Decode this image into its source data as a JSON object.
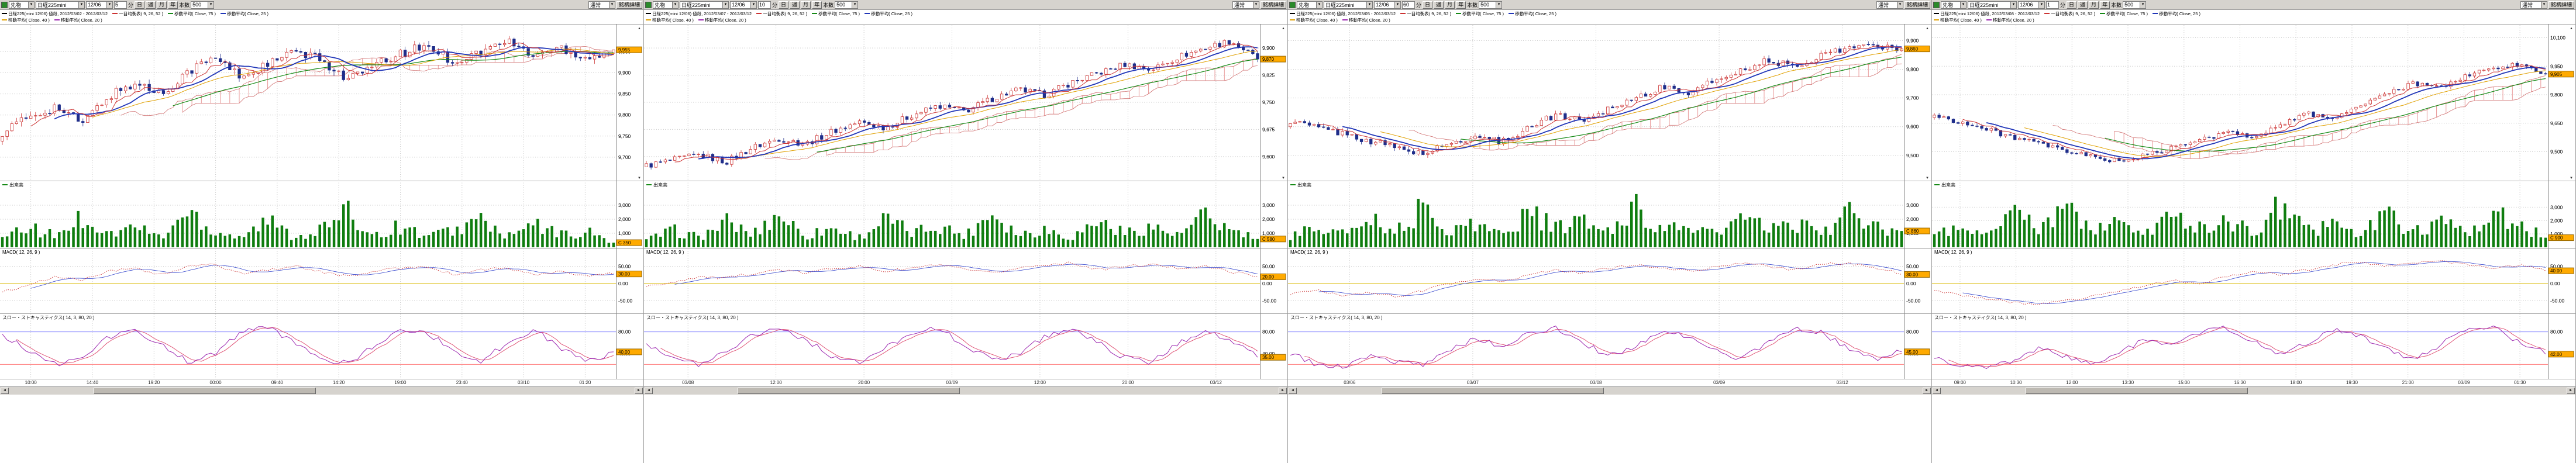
{
  "colors": {
    "up": "#cc3333",
    "down": "#1f2d8a",
    "cloud": "#e89898",
    "span": "#d07070",
    "ma75": "#168a16",
    "ma25": "#2136b8",
    "ma40": "#e0a000",
    "tenkan": "#cc3333",
    "volume": "#0f7d0f",
    "macd": "#cc3333",
    "signal": "#3344cc",
    "zero": "#d8b800",
    "stoch_k": "#9c27b0",
    "stoch_d": "#e05577",
    "ref_upper": "#7f7fff",
    "ref_lower": "#ff7f7f",
    "grid": "#c9c9c9",
    "axis": "#888888",
    "current_box": "#ffaa00",
    "toolbar_bg": "#d6d3ce",
    "swatch": "#2a8a2a"
  },
  "panels": [
    {
      "toolbar": {
        "market": "先物",
        "instrument": "日経225mini",
        "contract": "12/06",
        "interval_value": "5",
        "interval_unit": "分",
        "period_buttons": [
          "日",
          "週",
          "月",
          "年"
        ],
        "count_label": "本数",
        "count_value": "500",
        "mode": "通常",
        "detail": "銘柄詳細"
      },
      "legend": {
        "title": "日経225(mini 12/06) 値段, 2012/03/02 - 2012/03/12",
        "row1": [
          "一目均衡表( 9, 26, 52 )",
          "移動平均( Close, 75 )",
          "移動平均( Close, 25 )"
        ],
        "row2": [
          "移動平均( Close, 40 )",
          "移動平均( Close, 20 )"
        ]
      },
      "volume": {
        "label": "出来高"
      },
      "macd": {
        "label": "MACD( 12, 26, 9 )"
      },
      "stoch": {
        "label": "スロー・ストキャスティクス( 14, 3, 80, 20 )"
      }
    },
    {
      "toolbar": {
        "market": "先物",
        "instrument": "日経225mini",
        "contract": "12/06",
        "interval_value": "10",
        "interval_unit": "分",
        "period_buttons": [
          "日",
          "週",
          "月",
          "年"
        ],
        "count_label": "本数",
        "count_value": "500",
        "mode": "通常",
        "detail": "銘柄詳細"
      },
      "legend": {
        "title": "日経225(mini 12/06) 値段, 2012/03/07 - 2012/03/12",
        "row1": [
          "一目均衡表( 9, 26, 52 )",
          "移動平均( Close, 75 )",
          "移動平均( Close, 25 )"
        ],
        "row2": [
          "移動平均( Close, 40 )",
          "移動平均( Close, 20 )"
        ]
      },
      "volume": {
        "label": "出来高"
      },
      "macd": {
        "label": "MACD( 12, 26, 9 )"
      },
      "stoch": {
        "label": "スロー・ストキャスティクス( 14, 3, 80, 20 )"
      }
    },
    {
      "toolbar": {
        "market": "先物",
        "instrument": "日経225mini",
        "contract": "12/06",
        "interval_value": "60",
        "interval_unit": "分",
        "period_buttons": [
          "日",
          "週",
          "月",
          "年"
        ],
        "count_label": "本数",
        "count_value": "500",
        "mode": "通常",
        "detail": "銘柄詳細"
      },
      "legend": {
        "title": "日経225(mini 12/06) 値段, 2012/03/05 - 2012/03/12",
        "row1": [
          "一目均衡表( 9, 26, 52 )",
          "移動平均( Close, 75 )",
          "移動平均( Close, 25 )"
        ],
        "row2": [
          "移動平均( Close, 40 )",
          "移動平均( Close, 20 )"
        ]
      },
      "volume": {
        "label": "出来高"
      },
      "macd": {
        "label": "MACD( 12, 26, 9 )"
      },
      "stoch": {
        "label": "スロー・ストキャスティクス( 14, 3, 80, 20 )"
      }
    },
    {
      "toolbar": {
        "market": "先物",
        "instrument": "日経225mini",
        "contract": "12/06",
        "interval_value": "1",
        "interval_unit": "分",
        "period_buttons": [
          "日",
          "週",
          "月",
          "年"
        ],
        "count_label": "本数",
        "count_value": "500",
        "mode": "通常",
        "detail": "銘柄詳細"
      },
      "legend": {
        "title": "日経225(mini 12/06) 値段, 2012/03/08 - 2012/03/12",
        "row1": [
          "一目均衡表( 9, 26, 52 )",
          "移動平均( Close, 75 )",
          "移動平均( Close, 25 )"
        ],
        "row2": [
          "移動平均( Close, 40 )",
          "移動平均( Close, 20 )"
        ]
      },
      "volume": {
        "label": "出来高"
      },
      "macd": {
        "label": "MACD( 12, 26, 9 )"
      },
      "stoch": {
        "label": "スロー・ストキャスティクス( 14, 3, 80, 20 )"
      }
    }
  ],
  "chart_data": [
    {
      "type": "candlestick",
      "title": "日経225(mini 12/06)",
      "x_labels": [
        "10:00",
        "14:40",
        "19:20",
        "00:00",
        "09:40",
        "14:20",
        "19:00",
        "23:40",
        "03/10",
        "01:20"
      ],
      "price_anchors": [
        9760,
        9795,
        9820,
        9780,
        9845,
        9875,
        9850,
        9905,
        9935,
        9890,
        9920,
        9950,
        9930,
        9885,
        9915,
        9945,
        9965,
        9925,
        9950,
        9975,
        9940,
        9960,
        9935,
        9955
      ],
      "jitter": 11,
      "price_axis": {
        "min": 9650,
        "max": 10010,
        "tick_values": [
          9950,
          9900,
          9850,
          9800,
          9750,
          9700
        ],
        "tick_labels": [
          "9,950",
          "9,900",
          "9,850",
          "9,800",
          "9,750",
          "9,700"
        ],
        "current": "9,955"
      },
      "volume": {
        "anchors": [
          600,
          1400,
          800,
          2200,
          900,
          1500,
          700,
          2600,
          1100,
          800,
          1900,
          700,
          1300,
          2400,
          900,
          1500,
          800,
          1200,
          2000,
          700,
          1600,
          900,
          1100,
          350
        ],
        "max": 4000,
        "tick_values": [
          3000,
          2000,
          1000
        ],
        "tick_labels": [
          "3,000",
          "2,000",
          "1,000"
        ],
        "current": "C 350"
      },
      "macd": {
        "anchors": [
          -25,
          -5,
          20,
          10,
          35,
          45,
          25,
          50,
          55,
          30,
          40,
          50,
          35,
          20,
          35,
          45,
          50,
          25,
          40,
          45,
          25,
          35,
          20,
          30
        ],
        "range": [
          -80,
          80
        ],
        "tick_values": [
          50,
          0,
          -50
        ],
        "tick_labels": [
          "50.00",
          "0.00",
          "-50.00"
        ],
        "current": "30.00"
      },
      "stoch": {
        "anchors": [
          75,
          45,
          20,
          35,
          70,
          85,
          55,
          25,
          40,
          80,
          88,
          60,
          30,
          22,
          55,
          82,
          78,
          45,
          25,
          60,
          85,
          50,
          28,
          40
        ],
        "range": [
          0,
          100
        ],
        "tick_values": [
          80,
          40
        ],
        "tick_labels": [
          "80.00",
          "40.00"
        ],
        "upper": 80,
        "lower": 20,
        "current": "40.00"
      }
    },
    {
      "type": "candlestick",
      "title": "日経225(mini 12/06)",
      "x_labels": [
        "03/08",
        "12:00",
        "20:00",
        "03/09",
        "12:00",
        "20:00",
        "03/12"
      ],
      "price_anchors": [
        9575,
        9590,
        9605,
        9585,
        9625,
        9650,
        9635,
        9670,
        9695,
        9680,
        9715,
        9740,
        9725,
        9760,
        9785,
        9770,
        9805,
        9830,
        9855,
        9840,
        9875,
        9900,
        9920,
        9870
      ],
      "jitter": 9,
      "price_axis": {
        "min": 9540,
        "max": 9960,
        "tick_values": [
          9900,
          9825,
          9750,
          9675,
          9600
        ],
        "tick_labels": [
          "9,900",
          "9,825",
          "9,750",
          "9,675",
          "9,600"
        ],
        "current": "9,870"
      },
      "volume": {
        "anchors": [
          500,
          1200,
          700,
          1800,
          900,
          2400,
          800,
          1400,
          700,
          2000,
          1000,
          1600,
          800,
          2600,
          900,
          1300,
          700,
          1900,
          1000,
          1500,
          800,
          2200,
          1200,
          580
        ],
        "max": 4000,
        "tick_values": [
          3000,
          2000,
          1000
        ],
        "tick_labels": [
          "3,000",
          "2,000",
          "1,000"
        ],
        "current": "C 580"
      },
      "macd": {
        "anchors": [
          -10,
          5,
          20,
          15,
          30,
          40,
          30,
          45,
          50,
          35,
          45,
          55,
          40,
          30,
          45,
          55,
          60,
          40,
          50,
          55,
          45,
          50,
          35,
          20
        ],
        "range": [
          -80,
          80
        ],
        "tick_values": [
          50,
          0,
          -50
        ],
        "tick_labels": [
          "50.00",
          "0.00",
          "-50.00"
        ],
        "current": "20.00"
      },
      "stoch": {
        "anchors": [
          60,
          30,
          20,
          45,
          75,
          88,
          65,
          35,
          22,
          50,
          80,
          86,
          55,
          28,
          40,
          72,
          86,
          60,
          32,
          24,
          58,
          84,
          62,
          35
        ],
        "range": [
          0,
          100
        ],
        "tick_values": [
          80,
          40
        ],
        "tick_labels": [
          "80.00",
          "40.00"
        ],
        "upper": 80,
        "lower": 20,
        "current": "35.00"
      }
    },
    {
      "type": "candlestick",
      "title": "日経225(mini 12/06)",
      "x_labels": [
        "03/06",
        "03/07",
        "03/08",
        "03/09",
        "03/12"
      ],
      "price_anchors": [
        9620,
        9598,
        9575,
        9550,
        9528,
        9505,
        9540,
        9568,
        9548,
        9600,
        9642,
        9622,
        9665,
        9702,
        9738,
        9718,
        9762,
        9800,
        9832,
        9808,
        9852,
        9875,
        9888,
        9862
      ],
      "jitter": 11,
      "price_axis": {
        "min": 9420,
        "max": 9950,
        "tick_values": [
          9900,
          9800,
          9700,
          9600,
          9500
        ],
        "tick_labels": [
          "9,900",
          "9,800",
          "9,700",
          "9,600",
          "9,500"
        ],
        "current": "9,860"
      },
      "volume": {
        "anchors": [
          700,
          1500,
          900,
          2300,
          1100,
          2800,
          1200,
          1700,
          900,
          2500,
          1300,
          1900,
          1000,
          3000,
          1100,
          1600,
          900,
          2100,
          1200,
          1700,
          1000,
          2400,
          1400,
          860
        ],
        "max": 4000,
        "tick_values": [
          3000,
          2000,
          1000
        ],
        "tick_labels": [
          "3,000",
          "2,000",
          "1,000"
        ],
        "current": "C 860"
      },
      "macd": {
        "anchors": [
          -30,
          -20,
          -35,
          -25,
          -40,
          -20,
          0,
          15,
          5,
          25,
          40,
          30,
          45,
          55,
          45,
          35,
          50,
          60,
          50,
          40,
          55,
          60,
          45,
          30
        ],
        "range": [
          -80,
          80
        ],
        "tick_values": [
          50,
          0,
          -50
        ],
        "tick_labels": [
          "50.00",
          "0.00",
          "-50.00"
        ],
        "current": "30.00"
      },
      "stoch": {
        "anchors": [
          40,
          20,
          15,
          35,
          25,
          18,
          45,
          70,
          50,
          78,
          88,
          60,
          35,
          55,
          82,
          70,
          45,
          30,
          62,
          86,
          78,
          50,
          30,
          45
        ],
        "range": [
          0,
          100
        ],
        "tick_values": [
          80,
          40
        ],
        "tick_labels": [
          "80.00",
          "40.00"
        ],
        "upper": 80,
        "lower": 20,
        "current": "45.00"
      }
    },
    {
      "type": "candlestick",
      "title": "日経225(mini 12/06)",
      "x_labels": [
        "09:00",
        "10:30",
        "12:00",
        "13:30",
        "15:00",
        "16:30",
        "18:00",
        "19:30",
        "21:00",
        "03/09",
        "01:30"
      ],
      "price_anchors": [
        9690,
        9655,
        9615,
        9575,
        9538,
        9500,
        9472,
        9450,
        9482,
        9522,
        9560,
        9602,
        9580,
        9642,
        9700,
        9678,
        9742,
        9800,
        9858,
        9838,
        9898,
        9938,
        9960,
        9905
      ],
      "jitter": 13,
      "price_axis": {
        "min": 9360,
        "max": 10160,
        "tick_values": [
          10100,
          9950,
          9800,
          9650,
          9500
        ],
        "tick_labels": [
          "10,100",
          "9,950",
          "9,800",
          "9,650",
          "9,500"
        ],
        "current": "9,905"
      },
      "volume": {
        "anchors": [
          800,
          1600,
          1000,
          2600,
          1200,
          3000,
          1300,
          1800,
          1000,
          2700,
          1400,
          2000,
          1100,
          3100,
          1200,
          1700,
          1000,
          2300,
          1300,
          1800,
          1100,
          2600,
          1500,
          900
        ],
        "max": 4200,
        "tick_values": [
          3000,
          2000,
          1000
        ],
        "tick_labels": [
          "3,000",
          "2,000",
          "1,000"
        ],
        "current": "C 900"
      },
      "macd": {
        "anchors": [
          -20,
          -35,
          -45,
          -55,
          -60,
          -50,
          -35,
          -20,
          -5,
          10,
          0,
          20,
          35,
          25,
          40,
          55,
          65,
          50,
          60,
          68,
          55,
          45,
          55,
          40
        ],
        "range": [
          -80,
          80
        ],
        "tick_values": [
          50,
          0,
          -50
        ],
        "tick_labels": [
          "50.00",
          "0.00",
          "-50.00"
        ],
        "current": "40.00"
      },
      "stoch": {
        "anchors": [
          30,
          18,
          12,
          28,
          50,
          35,
          20,
          42,
          68,
          55,
          80,
          88,
          62,
          38,
          58,
          84,
          74,
          48,
          30,
          55,
          85,
          90,
          60,
          42
        ],
        "range": [
          0,
          100
        ],
        "tick_values": [
          80,
          40
        ],
        "tick_labels": [
          "80.00",
          "40.00"
        ],
        "upper": 80,
        "lower": 20,
        "current": "42.00"
      }
    }
  ]
}
